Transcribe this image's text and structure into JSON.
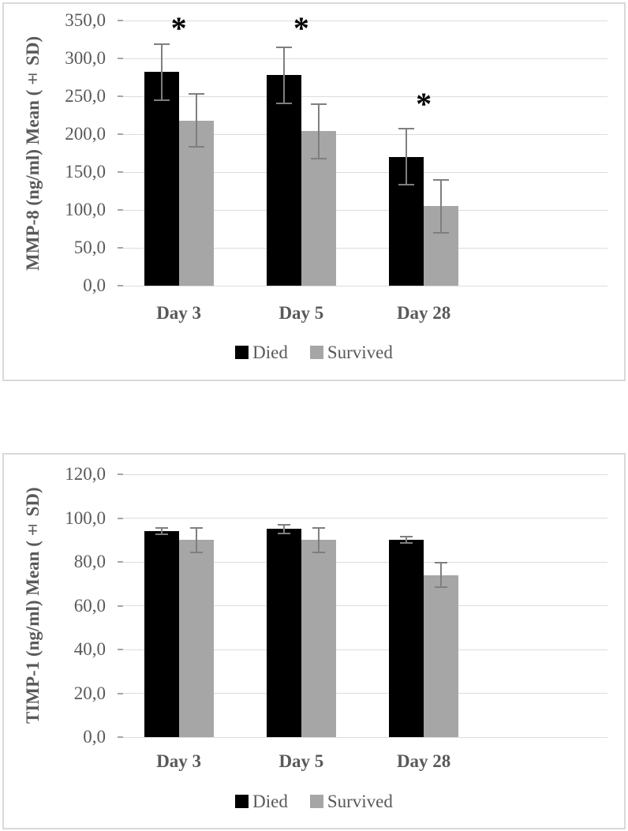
{
  "figure": {
    "description_visible_text_only": true,
    "colors": {
      "died_bar": "#000000",
      "survived_bar": "#a6a6a6",
      "error_bar": "#7f7f7f",
      "axis_text": "#595959",
      "gridline": "#dcdcdc",
      "panel_border": "#d9d9d9",
      "significance_marker": "#000000",
      "background": "#ffffff"
    }
  },
  "chart_data": [
    {
      "type": "bar",
      "title": "",
      "ylabel": "MMP-8 (ng/ml) Mean (± SD)",
      "xlabel": "",
      "categories": [
        "Day 3",
        "Day 5",
        "Day 28"
      ],
      "series": [
        {
          "name": "Died",
          "color": "#000000",
          "values": [
            282,
            278,
            170
          ],
          "sd": [
            37,
            37,
            37
          ]
        },
        {
          "name": "Survived",
          "color": "#a6a6a6",
          "values": [
            218,
            204,
            105
          ],
          "sd": [
            35,
            36,
            35
          ]
        }
      ],
      "ylim": [
        0,
        350
      ],
      "ytick_step": 50,
      "ytick_labels": [
        "0,0",
        "50,0",
        "100,0",
        "150,0",
        "200,0",
        "250,0",
        "300,0",
        "350,0"
      ],
      "grid": true,
      "legend": [
        "Died",
        "Survived"
      ],
      "legend_position": "bottom",
      "significance_markers": [
        {
          "category": "Day 3",
          "symbol": "*",
          "y_value": 345
        },
        {
          "category": "Day 5",
          "symbol": "*",
          "y_value": 345
        },
        {
          "category": "Day 28",
          "symbol": "*",
          "y_value": 245
        }
      ]
    },
    {
      "type": "bar",
      "title": "",
      "ylabel": "TIMP-1 (ng/ml) Mean (± SD)",
      "xlabel": "",
      "categories": [
        "Day 3",
        "Day 5",
        "Day 28"
      ],
      "series": [
        {
          "name": "Died",
          "color": "#000000",
          "values": [
            94,
            95,
            90
          ],
          "sd": [
            1.5,
            2,
            1.5
          ]
        },
        {
          "name": "Survived",
          "color": "#a6a6a6",
          "values": [
            90,
            90,
            74
          ],
          "sd": [
            5.5,
            5.5,
            5.5
          ]
        }
      ],
      "ylim": [
        0,
        120
      ],
      "ytick_step": 20,
      "ytick_labels": [
        "0,0",
        "20,0",
        "40,0",
        "60,0",
        "80,0",
        "100,0",
        "120,0"
      ],
      "grid": true,
      "legend": [
        "Died",
        "Survived"
      ],
      "legend_position": "bottom",
      "significance_markers": []
    }
  ]
}
